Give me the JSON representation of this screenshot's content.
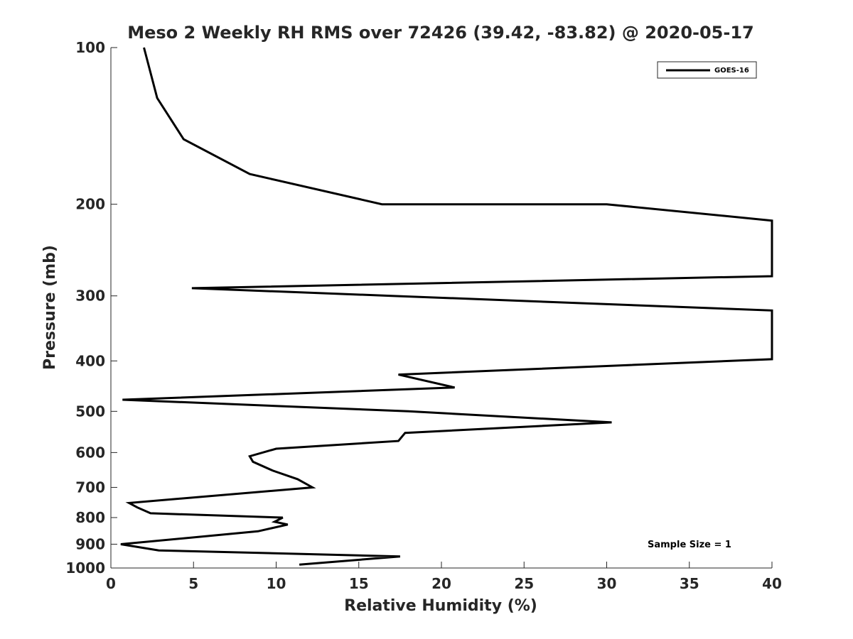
{
  "chart_data": {
    "type": "line",
    "title": "Meso 2 Weekly RH RMS over 72426 (39.42, -83.82) @ 2020-05-17",
    "xlabel": "Relative Humidity (%)",
    "ylabel": "Pressure (mb)",
    "xlim": [
      0,
      40
    ],
    "ylim": [
      100,
      1000
    ],
    "y_scale": "log",
    "y_reversed": true,
    "x_ticks": [
      "0",
      "5",
      "10",
      "15",
      "20",
      "25",
      "30",
      "35",
      "40"
    ],
    "y_ticks": [
      "100",
      "200",
      "300",
      "400",
      "500",
      "600",
      "700",
      "800",
      "900",
      "1000"
    ],
    "grid": false,
    "legend_position": "top-right",
    "annotation": "Sample Size = 1",
    "series": [
      {
        "name": "GOES-16",
        "color": "#000000",
        "points": [
          {
            "x": 2.0,
            "y": 100
          },
          {
            "x": 2.8,
            "y": 125
          },
          {
            "x": 4.4,
            "y": 150
          },
          {
            "x": 8.4,
            "y": 175
          },
          {
            "x": 16.4,
            "y": 200
          },
          {
            "x": 30.0,
            "y": 200
          },
          {
            "x": 40,
            "y": 215
          },
          {
            "x": 40,
            "y": 275
          },
          {
            "x": 4.9,
            "y": 290
          },
          {
            "x": 17.0,
            "y": 300
          },
          {
            "x": 40,
            "y": 320
          },
          {
            "x": 40,
            "y": 397
          },
          {
            "x": 17.4,
            "y": 425
          },
          {
            "x": 20.8,
            "y": 450
          },
          {
            "x": 0.7,
            "y": 475
          },
          {
            "x": 18.0,
            "y": 500
          },
          {
            "x": 30.3,
            "y": 525
          },
          {
            "x": 17.8,
            "y": 550
          },
          {
            "x": 17.4,
            "y": 570
          },
          {
            "x": 10.0,
            "y": 590
          },
          {
            "x": 8.4,
            "y": 610
          },
          {
            "x": 8.6,
            "y": 625
          },
          {
            "x": 9.8,
            "y": 650
          },
          {
            "x": 11.3,
            "y": 675
          },
          {
            "x": 12.2,
            "y": 700
          },
          {
            "x": 1.1,
            "y": 750
          },
          {
            "x": 1.6,
            "y": 765
          },
          {
            "x": 2.4,
            "y": 785
          },
          {
            "x": 10.4,
            "y": 800
          },
          {
            "x": 9.9,
            "y": 815
          },
          {
            "x": 10.7,
            "y": 825
          },
          {
            "x": 8.9,
            "y": 850
          },
          {
            "x": 0.6,
            "y": 900
          },
          {
            "x": 2.9,
            "y": 925
          },
          {
            "x": 17.5,
            "y": 950
          },
          {
            "x": 11.4,
            "y": 985
          }
        ]
      }
    ]
  }
}
